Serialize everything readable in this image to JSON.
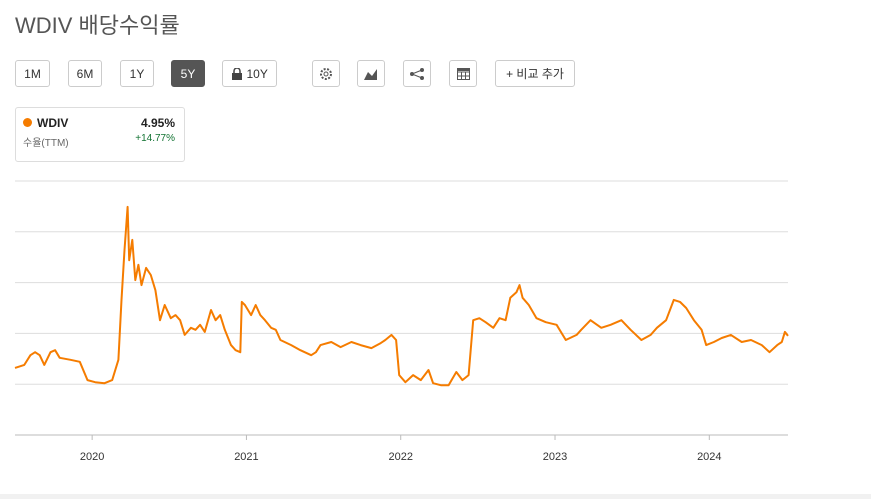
{
  "title": "WDIV 배당수익률",
  "buttons": [
    "1M",
    "6M",
    "1Y",
    "5Y",
    "10Y",
    "+ 비교 추가"
  ],
  "active_button": "5Y",
  "legend": {
    "name": "WDIV",
    "value": "4.95%",
    "metric": "수율(TTM)",
    "change": "+14.77%"
  },
  "chart_data": {
    "type": "line",
    "x": [
      2019.5,
      2019.56,
      2019.6,
      2019.63,
      2019.66,
      2019.69,
      2019.73,
      2019.76,
      2019.79,
      2019.86,
      2019.92,
      2019.97,
      2020.02,
      2020.08,
      2020.13,
      2020.17,
      2020.19,
      2020.21,
      2020.23,
      2020.24,
      2020.26,
      2020.28,
      2020.3,
      2020.32,
      2020.35,
      2020.38,
      2020.41,
      2020.44,
      2020.47,
      2020.51,
      2020.54,
      2020.57,
      2020.6,
      2020.64,
      2020.67,
      2020.7,
      2020.73,
      2020.77,
      2020.8,
      2020.83,
      2020.86,
      2020.9,
      2020.93,
      2020.96,
      2020.97,
      2020.99,
      2021.03,
      2021.06,
      2021.09,
      2021.12,
      2021.16,
      2021.19,
      2021.22,
      2021.29,
      2021.35,
      2021.42,
      2021.45,
      2021.48,
      2021.55,
      2021.61,
      2021.68,
      2021.74,
      2021.81,
      2021.87,
      2021.9,
      2021.94,
      2021.97,
      2021.99,
      2022.03,
      2022.08,
      2022.13,
      2022.18,
      2022.21,
      2022.26,
      2022.31,
      2022.36,
      2022.4,
      2022.44,
      2022.47,
      2022.51,
      2022.55,
      2022.6,
      2022.64,
      2022.68,
      2022.71,
      2022.75,
      2022.77,
      2022.79,
      2022.83,
      2022.88,
      2022.94,
      2023.01,
      2023.07,
      2023.14,
      2023.17,
      2023.23,
      2023.3,
      2023.36,
      2023.43,
      2023.49,
      2023.56,
      2023.62,
      2023.66,
      2023.72,
      2023.77,
      2023.81,
      2023.85,
      2023.9,
      2023.95,
      2023.98,
      2024.03,
      2024.08,
      2024.14,
      2024.21,
      2024.27,
      2024.34,
      2024.39,
      2024.44,
      2024.47,
      2024.49,
      2024.51
    ],
    "series": [
      {
        "name": "WDIV",
        "color": "#f57c00",
        "values": [
          4.32,
          4.38,
          4.57,
          4.63,
          4.57,
          4.38,
          4.63,
          4.67,
          4.52,
          4.48,
          4.44,
          4.08,
          4.04,
          4.02,
          4.08,
          4.48,
          5.66,
          6.64,
          7.49,
          6.44,
          6.84,
          6.05,
          6.35,
          5.95,
          6.29,
          6.15,
          5.85,
          5.26,
          5.56,
          5.3,
          5.36,
          5.26,
          4.97,
          5.11,
          5.07,
          5.17,
          5.03,
          5.46,
          5.26,
          5.36,
          5.07,
          4.77,
          4.67,
          4.63,
          5.62,
          5.56,
          5.36,
          5.56,
          5.36,
          5.26,
          5.11,
          5.07,
          4.87,
          4.77,
          4.67,
          4.57,
          4.63,
          4.77,
          4.83,
          4.73,
          4.83,
          4.77,
          4.71,
          4.81,
          4.87,
          4.97,
          4.87,
          4.18,
          4.04,
          4.18,
          4.08,
          4.28,
          4.02,
          3.98,
          3.98,
          4.24,
          4.08,
          4.18,
          5.26,
          5.3,
          5.22,
          5.11,
          5.3,
          5.26,
          5.7,
          5.81,
          5.95,
          5.7,
          5.56,
          5.3,
          5.22,
          5.17,
          4.87,
          4.97,
          5.07,
          5.26,
          5.11,
          5.17,
          5.26,
          5.07,
          4.87,
          4.97,
          5.11,
          5.26,
          5.66,
          5.62,
          5.5,
          5.26,
          5.07,
          4.77,
          4.83,
          4.91,
          4.97,
          4.83,
          4.87,
          4.77,
          4.63,
          4.77,
          4.83,
          5.03,
          4.95
        ]
      }
    ],
    "xlim": [
      2019.5,
      2024.51
    ],
    "xticks": [
      2020,
      2021,
      2022,
      2023,
      2024
    ],
    "ylim": [
      3,
      8
    ],
    "yticks": [
      3,
      4,
      5,
      6,
      7,
      8
    ],
    "ytick_labels": false,
    "grid": true
  }
}
